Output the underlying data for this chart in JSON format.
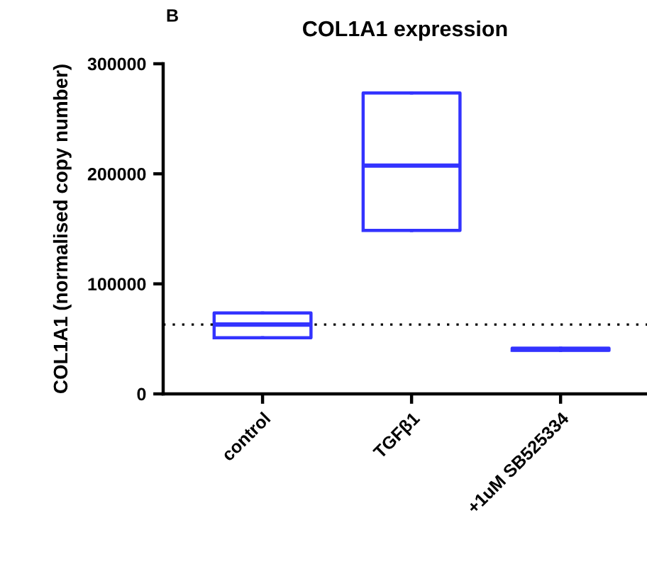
{
  "chart_data": {
    "type": "box",
    "title": "COL1A1 expression",
    "ylabel": "COL1A1 (normalised copy number)",
    "categories": [
      "control",
      "TGFβ1",
      "+1uM SB525334"
    ],
    "boxes": [
      {
        "low": 51000,
        "q1": 51000,
        "median": 63000,
        "q3": 73500,
        "high": 73500
      },
      {
        "low": 148500,
        "q1": 148500,
        "median": 207500,
        "q3": 273500,
        "high": 273500
      },
      {
        "low": 39500,
        "q1": 39500,
        "median": 40500,
        "q3": 41500,
        "high": 41500
      }
    ],
    "color": "#3333ff",
    "ylim": [
      0,
      300000
    ],
    "yticks": [
      0,
      100000,
      200000,
      300000
    ],
    "ref_lines": [
      {
        "axis": "y",
        "value": 63000,
        "label": null,
        "line_style": "dotted",
        "color": "#000000"
      }
    ],
    "annotations": [
      "B"
    ],
    "grid": false
  }
}
